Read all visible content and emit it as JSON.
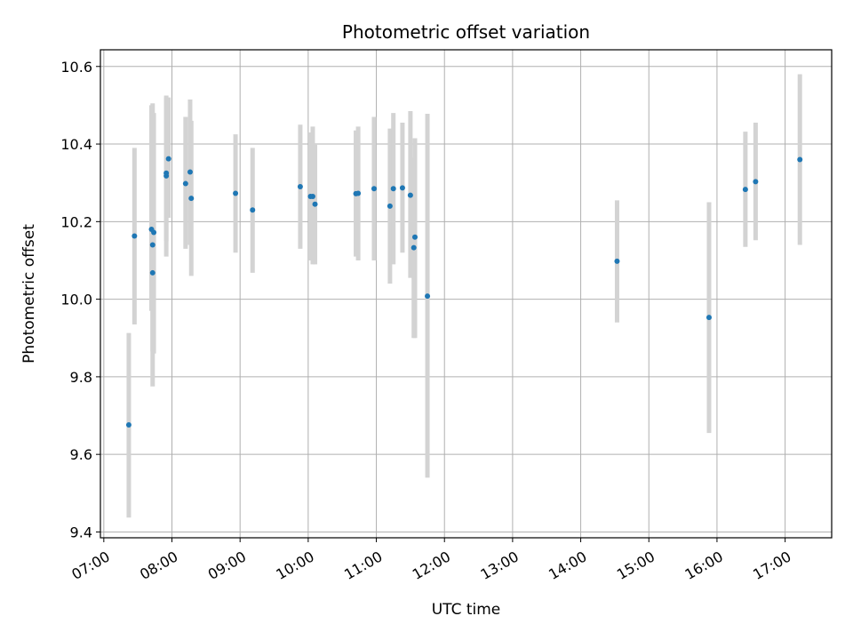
{
  "chart_data": {
    "type": "scatter",
    "title": "Photometric offset variation",
    "xlabel": "UTC time",
    "ylabel": "Photometric offset",
    "x_ticks": [
      "07:00",
      "08:00",
      "09:00",
      "10:00",
      "11:00",
      "12:00",
      "13:00",
      "14:00",
      "15:00",
      "16:00",
      "17:00"
    ],
    "x_tick_hours": [
      7,
      8,
      9,
      10,
      11,
      12,
      13,
      14,
      15,
      16,
      17
    ],
    "y_ticks": [
      "9.4",
      "9.6",
      "9.8",
      "10.0",
      "10.2",
      "10.4",
      "10.6"
    ],
    "y_tick_values": [
      9.4,
      9.6,
      9.8,
      10.0,
      10.2,
      10.4,
      10.6
    ],
    "xlim": [
      "06:57",
      "17:41"
    ],
    "ylim": [
      9.385,
      10.643
    ],
    "grid": true,
    "colors": {
      "point": "#1f77b4",
      "errorbar": "#d3d3d3",
      "grid": "#b0b0b0"
    },
    "points": [
      {
        "time": "07:22",
        "y": 9.676,
        "lo": 9.437,
        "hi": 9.913
      },
      {
        "time": "07:27",
        "y": 10.163,
        "lo": 9.935,
        "hi": 10.39
      },
      {
        "time": "07:42",
        "y": 10.18,
        "lo": 9.97,
        "hi": 10.5
      },
      {
        "time": "07:43",
        "y": 10.14,
        "lo": 9.775,
        "hi": 10.505
      },
      {
        "time": "07:43",
        "y": 10.068,
        "lo": 9.865,
        "hi": 10.47
      },
      {
        "time": "07:44",
        "y": 10.172,
        "lo": 9.86,
        "hi": 10.48
      },
      {
        "time": "07:55",
        "y": 10.325,
        "lo": 10.15,
        "hi": 10.525
      },
      {
        "time": "07:55",
        "y": 10.318,
        "lo": 10.11,
        "hi": 10.52
      },
      {
        "time": "07:57",
        "y": 10.362,
        "lo": 10.21,
        "hi": 10.52
      },
      {
        "time": "08:12",
        "y": 10.298,
        "lo": 10.13,
        "hi": 10.47
      },
      {
        "time": "08:16",
        "y": 10.328,
        "lo": 10.14,
        "hi": 10.515
      },
      {
        "time": "08:17",
        "y": 10.26,
        "lo": 10.06,
        "hi": 10.46
      },
      {
        "time": "08:56",
        "y": 10.273,
        "lo": 10.12,
        "hi": 10.425
      },
      {
        "time": "09:11",
        "y": 10.23,
        "lo": 10.068,
        "hi": 10.39
      },
      {
        "time": "09:53",
        "y": 10.29,
        "lo": 10.13,
        "hi": 10.45
      },
      {
        "time": "10:02",
        "y": 10.265,
        "lo": 10.1,
        "hi": 10.43
      },
      {
        "time": "10:04",
        "y": 10.265,
        "lo": 10.09,
        "hi": 10.445
      },
      {
        "time": "10:06",
        "y": 10.245,
        "lo": 10.09,
        "hi": 10.4
      },
      {
        "time": "10:42",
        "y": 10.272,
        "lo": 10.11,
        "hi": 10.435
      },
      {
        "time": "10:44",
        "y": 10.273,
        "lo": 10.1,
        "hi": 10.445
      },
      {
        "time": "10:58",
        "y": 10.285,
        "lo": 10.1,
        "hi": 10.47
      },
      {
        "time": "11:12",
        "y": 10.24,
        "lo": 10.04,
        "hi": 10.44
      },
      {
        "time": "11:15",
        "y": 10.285,
        "lo": 10.09,
        "hi": 10.48
      },
      {
        "time": "11:23",
        "y": 10.287,
        "lo": 10.12,
        "hi": 10.455
      },
      {
        "time": "11:30",
        "y": 10.268,
        "lo": 10.055,
        "hi": 10.485
      },
      {
        "time": "11:33",
        "y": 10.133,
        "lo": 9.9,
        "hi": 10.365
      },
      {
        "time": "11:34",
        "y": 10.16,
        "lo": 9.9,
        "hi": 10.415
      },
      {
        "time": "11:45",
        "y": 10.008,
        "lo": 9.54,
        "hi": 10.478
      },
      {
        "time": "14:32",
        "y": 10.098,
        "lo": 9.94,
        "hi": 10.255
      },
      {
        "time": "15:53",
        "y": 9.953,
        "lo": 9.655,
        "hi": 10.25
      },
      {
        "time": "16:25",
        "y": 10.283,
        "lo": 10.135,
        "hi": 10.432
      },
      {
        "time": "16:34",
        "y": 10.303,
        "lo": 10.152,
        "hi": 10.455
      },
      {
        "time": "17:13",
        "y": 10.36,
        "lo": 10.14,
        "hi": 10.58
      }
    ]
  }
}
